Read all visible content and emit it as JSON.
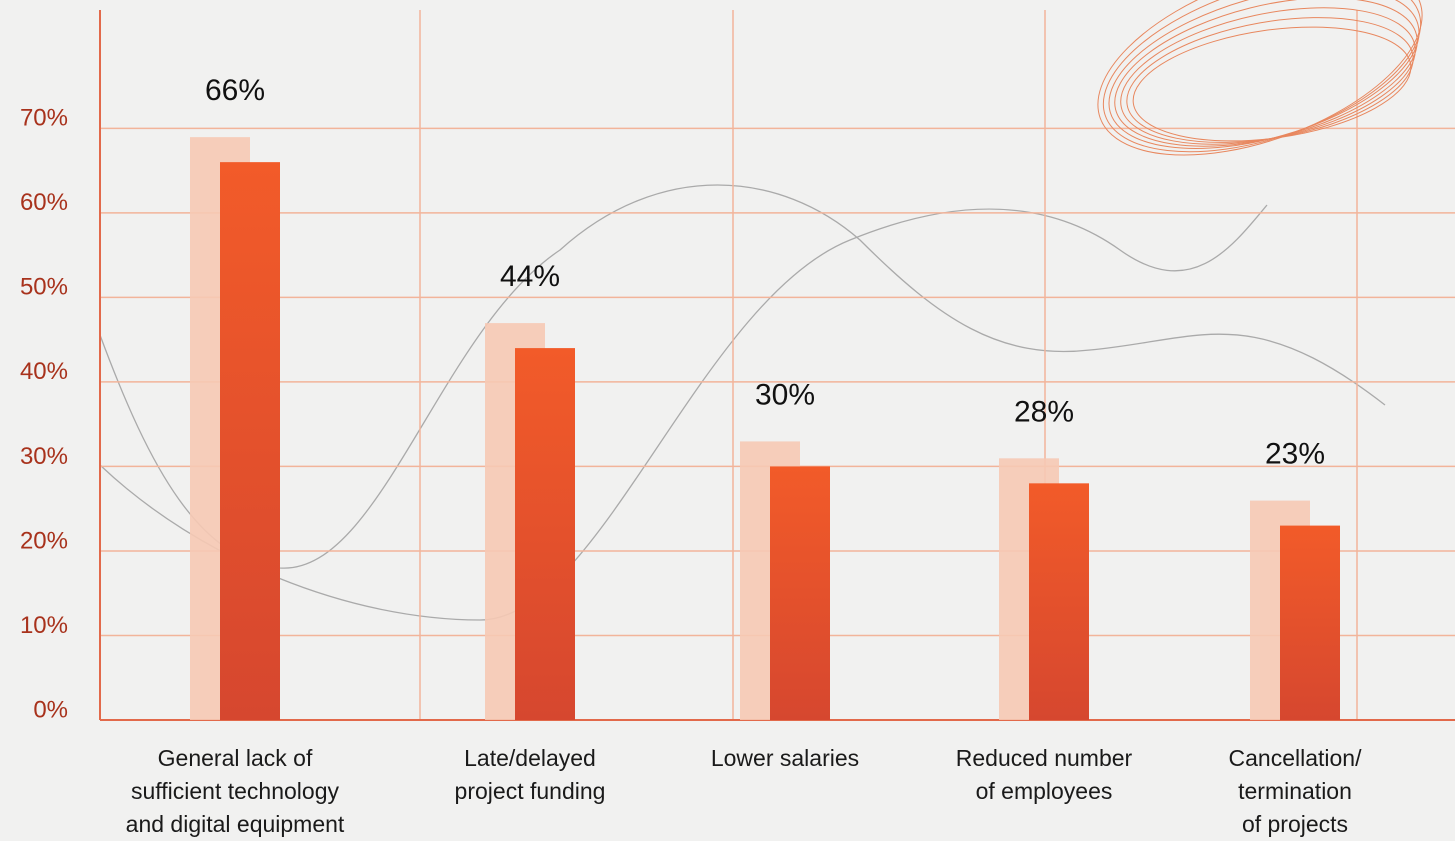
{
  "chart_data": {
    "type": "bar",
    "categories": [
      "General lack of\nsufficient technology\nand digital equipment",
      "Late/delayed\nproject funding",
      "Lower salaries",
      "Reduced number\nof employees",
      "Cancellation/\ntermination\nof projects"
    ],
    "values": [
      66,
      44,
      30,
      28,
      23
    ],
    "value_labels": [
      "66%",
      "44%",
      "30%",
      "28%",
      "23%"
    ],
    "color": "#ee5a2a",
    "ylim": [
      0,
      84
    ],
    "yticks": [
      {
        "value": 0,
        "label": "0%"
      },
      {
        "value": 10,
        "label": "10%"
      },
      {
        "value": 20,
        "label": "20%"
      },
      {
        "value": 30,
        "label": "30%"
      },
      {
        "value": 40,
        "label": "40%"
      },
      {
        "value": 50,
        "label": "50%"
      },
      {
        "value": 60,
        "label": "60%"
      },
      {
        "value": 70,
        "label": "70%"
      }
    ],
    "grid": true
  }
}
